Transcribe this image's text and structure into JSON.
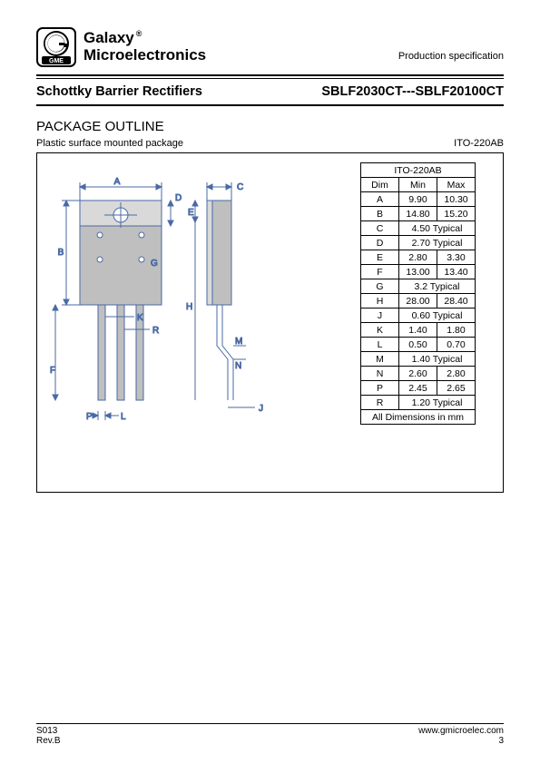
{
  "header": {
    "company_line1": "Galaxy",
    "company_line2": "Microelectronics",
    "logo_text": "GME",
    "reg_mark": "®",
    "prod_spec": "Production specification"
  },
  "title_row": {
    "left": "Schottky Barrier Rectifiers",
    "right": "SBLF2030CT---SBLF20100CT"
  },
  "section": {
    "title": "PACKAGE OUTLINE",
    "sub_left": "Plastic surface mounted package",
    "sub_right": "ITO-220AB"
  },
  "diagram_labels": [
    "A",
    "B",
    "C",
    "D",
    "E",
    "F",
    "G",
    "H",
    "J",
    "K",
    "L",
    "M",
    "N",
    "P",
    "R"
  ],
  "table": {
    "title": "ITO-220AB",
    "cols": [
      "Dim",
      "Min",
      "Max"
    ],
    "rows": [
      {
        "dim": "A",
        "min": "9.90",
        "max": "10.30"
      },
      {
        "dim": "B",
        "min": "14.80",
        "max": "15.20"
      },
      {
        "dim": "C",
        "span": "4.50 Typical"
      },
      {
        "dim": "D",
        "span": "2.70 Typical"
      },
      {
        "dim": "E",
        "min": "2.80",
        "max": "3.30"
      },
      {
        "dim": "F",
        "min": "13.00",
        "max": "13.40"
      },
      {
        "dim": "G",
        "span": "3.2 Typical"
      },
      {
        "dim": "H",
        "min": "28.00",
        "max": "28.40"
      },
      {
        "dim": "J",
        "span": "0.60 Typical"
      },
      {
        "dim": "K",
        "min": "1.40",
        "max": "1.80"
      },
      {
        "dim": "L",
        "min": "0.50",
        "max": "0.70"
      },
      {
        "dim": "M",
        "span": "1.40 Typical"
      },
      {
        "dim": "N",
        "min": "2.60",
        "max": "2.80"
      },
      {
        "dim": "P",
        "min": "2.45",
        "max": "2.65"
      },
      {
        "dim": "R",
        "span": "1.20 Typical"
      }
    ],
    "footer": "All Dimensions in mm"
  },
  "footer": {
    "left_line1": "S013",
    "left_line2": "Rev.B",
    "right_line1": "www.gmicroelec.com",
    "right_line2": "3"
  },
  "colors": {
    "diagram_fill": "#bfbfbf",
    "diagram_stroke": "#4a6aa5",
    "text": "#000000"
  }
}
